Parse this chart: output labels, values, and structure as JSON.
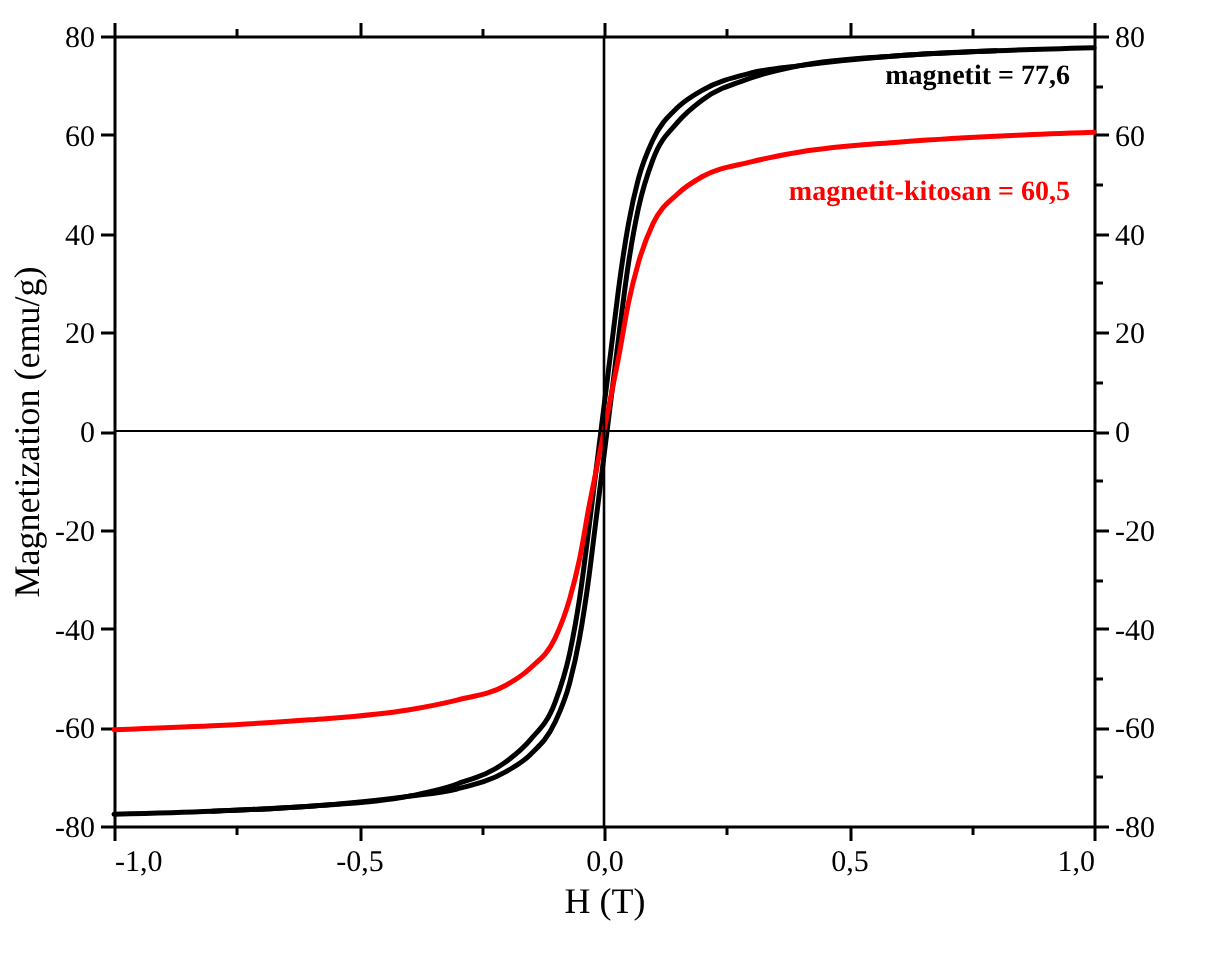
{
  "chart_data": {
    "type": "line",
    "xlabel": "H (T)",
    "ylabel": "Magnetization (emu/g)",
    "series": [
      {
        "color": "#000000",
        "x": [
          -1.0,
          -0.8,
          -0.6,
          -0.4,
          -0.3,
          -0.2,
          -0.15,
          -0.1,
          -0.07,
          -0.05,
          -0.03,
          -0.02,
          -0.01,
          0.0,
          0.01,
          0.02,
          0.03,
          0.05,
          0.07,
          0.1,
          0.15,
          0.2,
          0.3,
          0.4,
          0.6,
          0.8,
          1.0
        ],
        "values": [
          -77.6,
          -77,
          -76,
          -74,
          -72.5,
          -69,
          -65.5,
          -59,
          -51,
          -42,
          -29,
          -21,
          -13,
          -5,
          3,
          11,
          19,
          34,
          45,
          55,
          62.5,
          67,
          71.5,
          74,
          76,
          77,
          77.6
        ]
      },
      {
        "color": "#000000",
        "x": [
          -0.8,
          -0.6,
          -0.4,
          -0.3,
          -0.2,
          -0.15,
          -0.1,
          -0.07,
          -0.05,
          -0.03,
          -0.02,
          -0.01,
          0.0,
          0.01,
          0.02,
          0.03,
          0.05,
          0.07,
          0.1,
          0.15,
          0.2,
          0.3,
          0.4,
          0.6,
          0.8
        ],
        "values": [
          -77,
          -76,
          -74,
          -71.5,
          -67,
          -62.5,
          -55,
          -45,
          -34,
          -19,
          -11,
          -3,
          5,
          13,
          21,
          29,
          42,
          51,
          59,
          65.5,
          69,
          72.5,
          74,
          76,
          77
        ]
      },
      {
        "color": "#ff0000",
        "x": [
          -1.0,
          -0.8,
          -0.6,
          -0.4,
          -0.3,
          -0.2,
          -0.15,
          -0.1,
          -0.07,
          -0.05,
          -0.03,
          -0.02,
          -0.01,
          0.0,
          0.01,
          0.02,
          0.03,
          0.05,
          0.07,
          0.1,
          0.15,
          0.2,
          0.3,
          0.4,
          0.6,
          0.8,
          1.0
        ],
        "values": [
          -60.5,
          -59.7,
          -58.5,
          -56.5,
          -54.5,
          -51.5,
          -48,
          -42,
          -34,
          -26,
          -15,
          -10,
          -5,
          0,
          5,
          10,
          15,
          26,
          34,
          42,
          48,
          51.5,
          54.5,
          56.5,
          58.5,
          59.7,
          60.5
        ]
      }
    ],
    "annotations": [
      {
        "text": "magnetit = 77,6",
        "x": 1.0,
        "y": 77.6
      },
      {
        "text": "magnetit-kitosan = 60,5",
        "x": 1.0,
        "y": 60.5
      }
    ],
    "xlim": [
      -1.0,
      1.0
    ],
    "xticks": [
      {
        "value": -1.0,
        "label": "-1,0"
      },
      {
        "value": -0.75,
        "label": null
      },
      {
        "value": -0.5,
        "label": "-0,5"
      },
      {
        "value": -0.25,
        "label": null
      },
      {
        "value": 0.0,
        "label": "0,0"
      },
      {
        "value": 0.25,
        "label": null
      },
      {
        "value": 0.5,
        "label": "0,5"
      },
      {
        "value": 0.75,
        "label": null
      },
      {
        "value": 1.0,
        "label": "1,0"
      }
    ],
    "ylim": [
      -80,
      80
    ],
    "yticks": [
      -80,
      {
        "value": -70,
        "label": null
      },
      -60,
      {
        "value": -50,
        "label": null
      },
      -40,
      {
        "value": -30,
        "label": null
      },
      -20,
      {
        "value": -10,
        "label": null
      },
      0,
      {
        "value": 10,
        "label": null
      },
      20,
      {
        "value": 30,
        "label": null
      },
      40,
      {
        "value": 50,
        "label": null
      },
      60,
      {
        "value": 70,
        "label": null
      },
      80
    ],
    "y2lim": [
      -80,
      80
    ],
    "y2ticks": [
      -80,
      {
        "value": -70,
        "label": null
      },
      -60,
      {
        "value": -50,
        "label": null
      },
      -40,
      {
        "value": -30,
        "label": null
      },
      -20,
      {
        "value": -10,
        "label": null
      },
      0,
      {
        "value": 10,
        "label": null
      },
      20,
      {
        "value": 30,
        "label": null
      },
      40,
      {
        "value": 50,
        "label": null
      },
      60,
      {
        "value": 70,
        "label": null
      },
      80
    ],
    "ref_lines": [
      {
        "axis": "x",
        "value": 0
      },
      {
        "axis": "y",
        "value": 0
      }
    ],
    "grid": false,
    "legend": false,
    "marker": "none",
    "line_style": "solid"
  }
}
